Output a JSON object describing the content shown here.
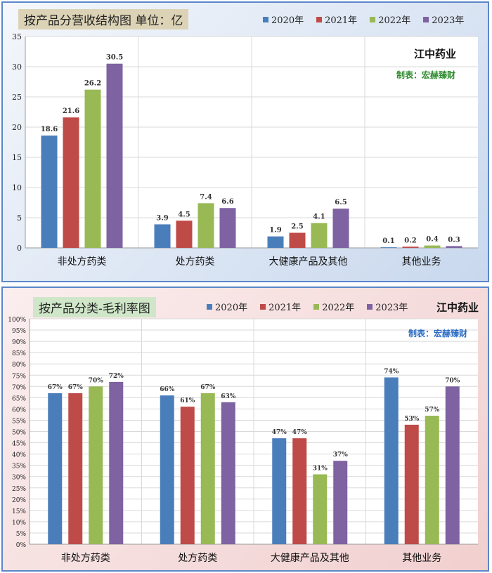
{
  "panel1": {
    "title": "按产品分营收结构图 单位：亿",
    "company": "江中药业",
    "maker": "制表：宏赫臻财",
    "maker_color": "#2e8b2e"
  },
  "panel2": {
    "title": "按产品分类-毛利率图",
    "company": "江中药业",
    "maker": "制表：宏赫臻财",
    "maker_color": "#2b6cc4"
  },
  "colors": [
    "#4a7ebb",
    "#be4b48",
    "#98b954",
    "#7e62a1"
  ],
  "chart_data": [
    {
      "type": "bar",
      "title": "按产品分营收结构图 单位：亿",
      "categories": [
        "非处方药类",
        "处方药类",
        "大健康产品及其他",
        "其他业务"
      ],
      "series": [
        {
          "name": "2020年",
          "values": [
            18.6,
            3.9,
            1.9,
            0.1
          ]
        },
        {
          "name": "2021年",
          "values": [
            21.6,
            4.5,
            2.5,
            0.2
          ]
        },
        {
          "name": "2022年",
          "values": [
            26.2,
            7.4,
            4.1,
            0.4
          ]
        },
        {
          "name": "2023年",
          "values": [
            30.5,
            6.6,
            6.5,
            0.3
          ]
        }
      ],
      "ylim": [
        0,
        35
      ],
      "yticks": [
        "0",
        "5",
        "10",
        "15",
        "20",
        "25",
        "30",
        "35"
      ],
      "grid": true,
      "legend": "top-right"
    },
    {
      "type": "bar",
      "title": "按产品分类-毛利率图",
      "categories": [
        "非处方药类",
        "处方药类",
        "大健康产品及其他",
        "其他业务"
      ],
      "series": [
        {
          "name": "2020年",
          "values": [
            67,
            66,
            47,
            74
          ]
        },
        {
          "name": "2021年",
          "values": [
            67,
            61,
            47,
            53
          ]
        },
        {
          "name": "2022年",
          "values": [
            70,
            67,
            31,
            57
          ]
        },
        {
          "name": "2023年",
          "values": [
            72,
            63,
            37,
            70
          ]
        }
      ],
      "ylim": [
        0,
        100
      ],
      "yticks": [
        "0%",
        "5%",
        "10%",
        "15%",
        "20%",
        "25%",
        "30%",
        "35%",
        "40%",
        "45%",
        "50%",
        "55%",
        "60%",
        "65%",
        "70%",
        "75%",
        "80%",
        "85%",
        "90%",
        "95%",
        "100%"
      ],
      "value_suffix": "%",
      "grid": true,
      "legend": "top-right"
    }
  ]
}
